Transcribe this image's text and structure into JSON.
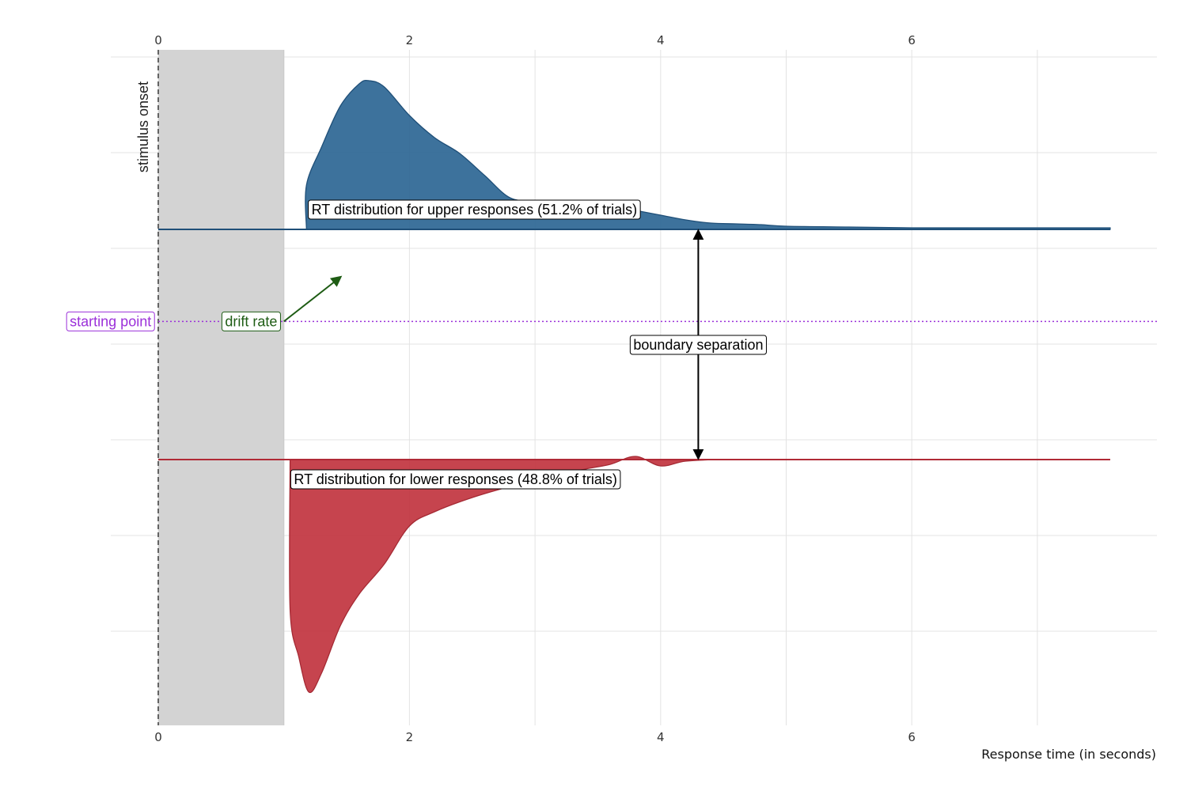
{
  "chart_data": {
    "type": "area",
    "title": "",
    "xlabel": "Response time (in seconds)",
    "ylabel": "",
    "xlim": [
      -0.4,
      8.3
    ],
    "x_ticks": [
      0,
      2,
      4,
      6
    ],
    "x_ticks_labels": [
      "0",
      "2",
      "4",
      "6"
    ],
    "grid": true,
    "non_decision_time": [
      0,
      1
    ],
    "stimulus_onset_label": "stimulus onset",
    "upper_density": {
      "label": "RT distribution for upper responses (51.2% of trials)",
      "color": "#2c6694",
      "x": [
        1.18,
        1.18,
        1.3,
        1.45,
        1.6,
        1.68,
        1.8,
        2.0,
        2.2,
        2.4,
        2.6,
        2.8,
        3.0,
        3.2,
        3.4,
        3.6,
        3.8,
        4.0,
        4.2,
        4.4,
        4.6,
        4.8,
        5.0,
        5.5,
        6.0,
        6.5,
        7.0,
        7.3,
        7.58
      ],
      "y": [
        0.0,
        0.28,
        0.52,
        0.78,
        0.92,
        0.94,
        0.9,
        0.72,
        0.58,
        0.48,
        0.34,
        0.2,
        0.18,
        0.18,
        0.17,
        0.15,
        0.12,
        0.09,
        0.06,
        0.04,
        0.035,
        0.03,
        0.02,
        0.015,
        0.01,
        0.01,
        0.01,
        0.01,
        0.01
      ]
    },
    "lower_density": {
      "label": "RT distribution for lower responses (48.8% of trials)",
      "color": "#c1343f",
      "x": [
        1.05,
        1.05,
        1.12,
        1.2,
        1.3,
        1.45,
        1.6,
        1.8,
        2.0,
        2.2,
        2.5,
        2.8,
        3.1,
        3.4,
        3.6,
        3.8,
        4.0,
        4.2,
        4.5,
        5.0,
        5.5,
        6.0,
        6.5,
        7.0,
        7.58
      ],
      "y": [
        0.0,
        0.95,
        1.25,
        1.47,
        1.35,
        1.05,
        0.85,
        0.66,
        0.42,
        0.33,
        0.24,
        0.17,
        0.11,
        0.06,
        0.03,
        -0.02,
        0.04,
        0.01,
        0.0,
        0.0,
        0.0,
        0.0,
        0.0,
        0.0,
        0.0
      ]
    },
    "boundaries": {
      "upper": 1.0,
      "lower": -1.0,
      "starting_point": 0.2
    },
    "annotations": {
      "starting_point": "starting point",
      "drift_rate": "drift rate",
      "boundary_separation": "boundary separation"
    },
    "colors": {
      "upper": "#2c6694",
      "lower": "#c1343f",
      "starting_point": "#9b30d9",
      "drift": "#1e5c14",
      "non_decision": "#d3d3d3"
    }
  }
}
